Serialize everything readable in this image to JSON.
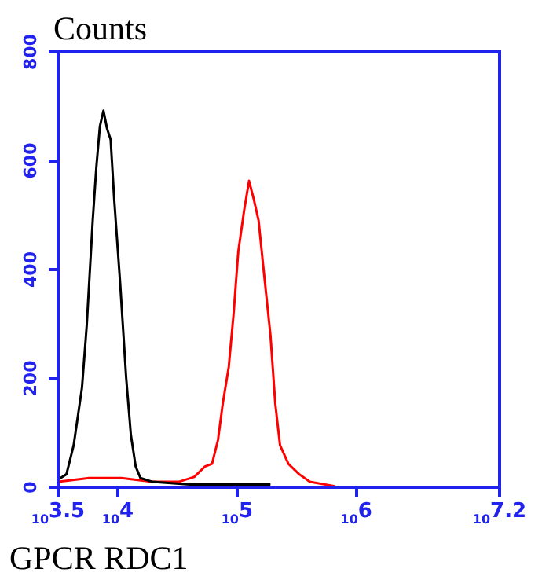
{
  "chart_data": {
    "type": "line",
    "ylabel": "Counts",
    "xlabel": "GPCR RDC1",
    "log": "x",
    "xlim": [
      3162.28,
      15848932
    ],
    "ylim": [
      0,
      800
    ],
    "xticks": [
      {
        "value": 3162.28,
        "label": "10$^{3.5}$"
      },
      {
        "value": 10000,
        "label": "10$^{4}$"
      },
      {
        "value": 100000,
        "label": "10$^{5}$"
      },
      {
        "value": 1000000,
        "label": "10$^{6}$"
      },
      {
        "value": 15848932,
        "label": "10$^{7.2}$"
      }
    ],
    "yticks": [
      0,
      200,
      400,
      600,
      800
    ],
    "grid": false,
    "legend": false,
    "marker": "none",
    "line_style": "solid",
    "series": [
      {
        "color": "#000000",
        "x": [
          3163,
          3715,
          4266,
          5012,
          5495,
          6166,
          6607,
          7079,
          7586,
          8128,
          8710,
          9333,
          10470,
          11750,
          12880,
          14130,
          15490,
          19500,
          39810,
          109600,
          190500
        ],
        "values": [
          14,
          24,
          77,
          183,
          298,
          490,
          587,
          663,
          692,
          659,
          639,
          529,
          375,
          202,
          96,
          38,
          17,
          10,
          5,
          5,
          5
        ]
      },
      {
        "color": "#ff0000",
        "x": [
          3163,
          5754,
          10720,
          19500,
          32360,
          43650,
          53700,
          61660,
          69180,
          75860,
          85110,
          93330,
          102300,
          114800,
          125900,
          138000,
          151400,
          166000,
          190500,
          208900,
          229100,
          269200,
          331100,
          407400,
          660700
        ],
        "values": [
          10,
          17,
          17,
          10,
          10,
          19,
          38,
          43,
          87,
          154,
          221,
          317,
          433,
          510,
          563,
          529,
          490,
          404,
          279,
          154,
          77,
          43,
          24,
          10,
          2
        ]
      }
    ]
  }
}
